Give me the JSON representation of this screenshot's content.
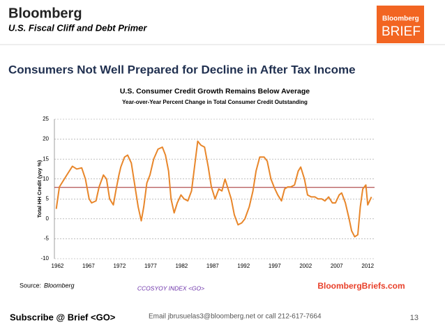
{
  "header": {
    "brand": "Bloomberg",
    "subtitle": "U.S. Fiscal Cliff  and Debt Primer",
    "logo_top": "Bloomberg",
    "logo_bottom": "BRIEF"
  },
  "heading": "Consumers Not Well Prepared for Decline in After Tax Income",
  "chart_data": {
    "type": "line",
    "title": "U.S. Consumer Credit Growth Remains Below Average",
    "subtitle": "Year-over-Year Percent Change in Total Consumer Credit Outstanding",
    "y_label": "Total HH Credit (yoy %)",
    "x": [
      1961.8,
      1962.3,
      1963.5,
      1964.4,
      1965.1,
      1965.9,
      1966.5,
      1967.1,
      1967.5,
      1968.2,
      1968.7,
      1969.4,
      1969.9,
      1970.4,
      1971.0,
      1971.4,
      1971.9,
      1972.2,
      1972.8,
      1973.3,
      1973.9,
      1974.5,
      1975.0,
      1975.5,
      1975.9,
      1976.4,
      1976.9,
      1977.5,
      1978.2,
      1978.9,
      1979.4,
      1979.9,
      1980.3,
      1980.8,
      1981.3,
      1981.9,
      1982.4,
      1983.0,
      1983.6,
      1984.0,
      1984.6,
      1985.1,
      1985.7,
      1986.3,
      1986.8,
      1987.4,
      1988.0,
      1988.5,
      1989.0,
      1989.5,
      1990.0,
      1990.5,
      1991.1,
      1991.7,
      1992.2,
      1992.9,
      1993.5,
      1994.0,
      1994.6,
      1995.3,
      1995.8,
      1996.4,
      1996.9,
      1997.5,
      1998.1,
      1998.6,
      1999.1,
      1999.6,
      2000.2,
      2000.8,
      2001.2,
      2001.8,
      2002.3,
      2002.9,
      2003.5,
      2004.0,
      2004.6,
      2005.1,
      2005.7,
      2006.3,
      2006.8,
      2007.4,
      2007.8,
      2008.4,
      2009.0,
      2009.4,
      2009.9,
      2010.4,
      2010.8,
      2011.2,
      2011.7,
      2012.0,
      2012.6
    ],
    "series": [
      {
        "color": "#e8862a",
        "values": [
          2.5,
          8,
          11,
          13.2,
          12.5,
          12.8,
          10,
          5,
          4,
          4.5,
          8,
          11,
          10,
          5,
          3.5,
          7,
          11,
          13,
          15.5,
          16,
          14,
          8,
          3,
          -0.5,
          3,
          9,
          11,
          15,
          17.5,
          18,
          16,
          12,
          5,
          1.5,
          4,
          6,
          5,
          4.5,
          7,
          12,
          19.5,
          18.5,
          18,
          13,
          8,
          5,
          7.5,
          7,
          10,
          7.5,
          5,
          1,
          -1.5,
          -1,
          0,
          3,
          7,
          12,
          15.5,
          15.5,
          14.5,
          10,
          8,
          6,
          4.5,
          7.5,
          8,
          8,
          8.5,
          12,
          13,
          10,
          6,
          5.5,
          5.5,
          5,
          5,
          4.5,
          5.5,
          4,
          4,
          6,
          6.5,
          4,
          0,
          -3,
          -4.5,
          -4,
          3,
          7.5,
          8.5,
          3.5,
          5.5
        ]
      }
    ],
    "reference_line": {
      "value": 7.9,
      "color": "#a0292a"
    },
    "xlim": [
      1961.5,
      2013.1
    ],
    "xticks": [
      1962,
      1967,
      1972,
      1977,
      1982,
      1987,
      1992,
      1997,
      2002,
      2007,
      2012
    ],
    "ylim": [
      -10,
      25
    ],
    "yticks": [
      -10,
      -5,
      0,
      5,
      10,
      15,
      20,
      25
    ],
    "grid": true
  },
  "source": {
    "label": "Source:",
    "name": "Bloomberg"
  },
  "ticker": "CCOSYOY INDEX <GO>",
  "website": "BloombergBriefs.com",
  "footer": {
    "subscribe": "Subscribe @ Brief <GO>",
    "contact": "Email jbrusuelas3@bloomberg.net or call 212-617-7664",
    "page": "13"
  }
}
